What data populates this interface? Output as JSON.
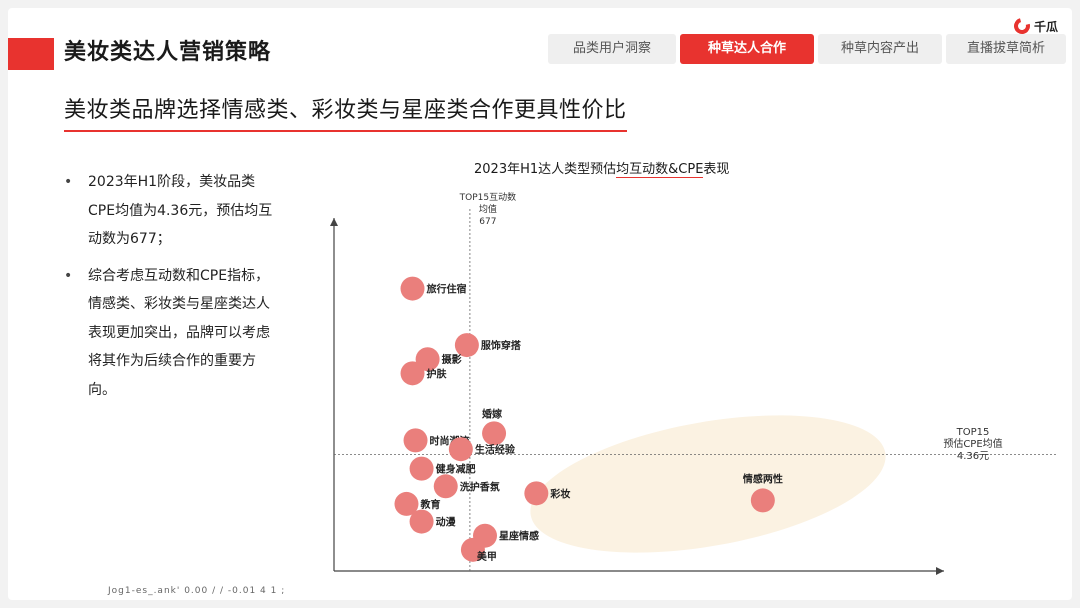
{
  "header": {
    "title": "美妆类达人营销策略",
    "logo_text": "千瓜",
    "tabs": [
      {
        "label": "品类用户洞察",
        "active": false
      },
      {
        "label": "种草达人合作",
        "active": true
      },
      {
        "label": "种草内容产出",
        "active": false
      },
      {
        "label": "直播拔草简析",
        "active": false
      }
    ]
  },
  "subtitle": "美妆类品牌选择情感类、彩妆类与星座类合作更具性价比",
  "bullets": [
    "2023年H1阶段，美妆品类CPE均值为4.36元，预估均互动数为677；",
    "综合考虑互动数和CPE指标，情感类、彩妆类与星座类达人表现更加突出，品牌可以考虑将其作为后续合作的重要方向。"
  ],
  "footer_text": "Jog1-es_.ank'         0.00  /  /  -0.01  4  1  ; ",
  "chart_data": {
    "type": "scatter",
    "title_prefix": "2023年H1达人类型预估",
    "title_highlight": "均互动数&CPE",
    "title_suffix": "表现",
    "vline_label": [
      "TOP15互动数",
      "均值",
      "677"
    ],
    "hline_label": [
      "TOP15",
      "预估CPE均值",
      "4.36元"
    ],
    "points": [
      {
        "name": "旅行住宿",
        "x": 0.13,
        "y": 0.8
      },
      {
        "name": "服饰穿搭",
        "x": 0.22,
        "y": 0.64
      },
      {
        "name": "摄影",
        "x": 0.155,
        "y": 0.6
      },
      {
        "name": "护肤",
        "x": 0.13,
        "y": 0.56
      },
      {
        "name": "婚嫁",
        "x": 0.265,
        "y": 0.39
      },
      {
        "name": "时尚潮流",
        "x": 0.135,
        "y": 0.37
      },
      {
        "name": "生活经验",
        "x": 0.21,
        "y": 0.345
      },
      {
        "name": "健身减肥",
        "x": 0.145,
        "y": 0.29
      },
      {
        "name": "洗护香氛",
        "x": 0.185,
        "y": 0.24
      },
      {
        "name": "彩妆",
        "x": 0.335,
        "y": 0.22
      },
      {
        "name": "情感两性",
        "x": 0.71,
        "y": 0.2
      },
      {
        "name": "教育",
        "x": 0.12,
        "y": 0.19
      },
      {
        "name": "动漫",
        "x": 0.145,
        "y": 0.14
      },
      {
        "name": "星座情感",
        "x": 0.25,
        "y": 0.1
      },
      {
        "name": "美甲",
        "x": 0.23,
        "y": 0.06
      }
    ],
    "vline_x": 0.225,
    "hline_y": 0.33,
    "colors": {
      "point": "#ea7f7c",
      "ellipse": "#fbf2e2",
      "accent": "#e8332f"
    }
  }
}
